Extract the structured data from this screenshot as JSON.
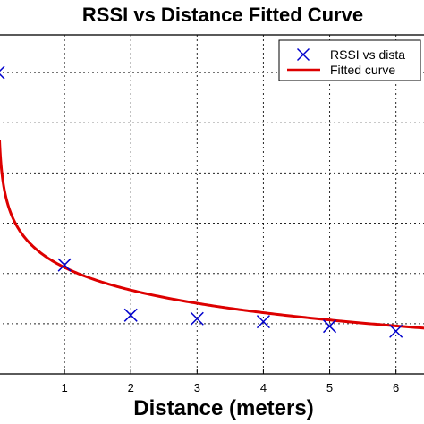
{
  "chart_data": {
    "type": "scatter",
    "title": "RSSI vs Distance Fitted Curve",
    "xlabel": "Distance (meters)",
    "ylabel": "",
    "x_ticks": [
      1,
      2,
      3,
      4,
      5,
      6
    ],
    "xlim": [
      0,
      6.45
    ],
    "ylim": [
      -11,
      -4.25
    ],
    "grid": true,
    "legend_position": "top-right",
    "series": [
      {
        "name": "RSSI vs dista",
        "kind": "markers",
        "marker": "x",
        "color": "#0000cc",
        "x": [
          0.0,
          1.0,
          2.0,
          3.0,
          4.0,
          5.0,
          6.0
        ],
        "y": [
          -5.0,
          -8.83,
          -9.83,
          -9.9,
          -9.96,
          -10.05,
          -10.15
        ]
      },
      {
        "name": "Fitted curve",
        "kind": "line",
        "color": "#dd0000",
        "curve": {
          "form": "a*ln(x)+b",
          "a": -0.65,
          "b": -8.88
        },
        "x_range": [
          0.02,
          6.45
        ]
      }
    ]
  }
}
